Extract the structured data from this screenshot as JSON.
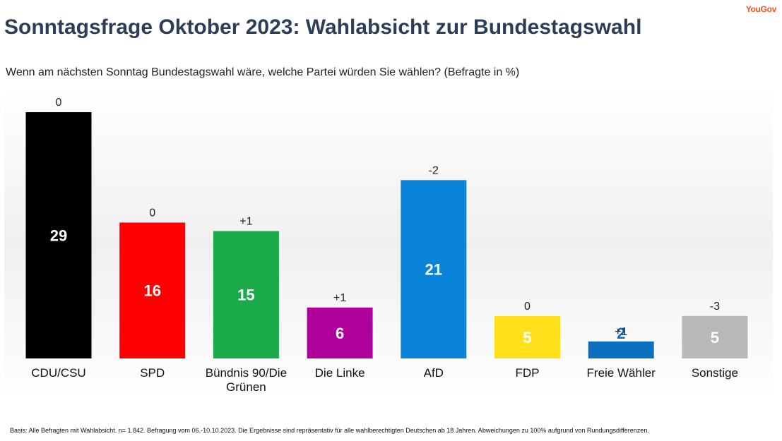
{
  "brand": {
    "logo_text": "YouGov"
  },
  "header": {
    "title": "Sonntagsfrage Oktober 2023: Wahlabsicht zur Bundestagswahl",
    "subtitle": "Wenn am nächsten Sonntag Bundestagswahl wäre, welche Partei würden Sie wählen? (Befragte in %)"
  },
  "footnote": "Basis: Alle Befragten mit Wahlabsicht. n= 1.842. Befragung vom 06.-10.10.2023. Die Ergebnisse sind repräsentativ für alle wahlberechtigten Deutschen ab 18 Jahren. Abweichungen zu 100% aufgrund von Rundungsdifferenzen.",
  "chart_data": {
    "type": "bar",
    "title": "Sonntagsfrage Oktober 2023: Wahlabsicht zur Bundestagswahl",
    "ylabel": "",
    "xlabel": "",
    "ylim": [
      0,
      29
    ],
    "grid": false,
    "categories": [
      "CDU/CSU",
      "SPD",
      "Bündnis 90/Die Grünen",
      "Die Linke",
      "AfD",
      "FDP",
      "Freie Wähler",
      "Sonstige"
    ],
    "category_label_lines": [
      [
        "CDU/CSU"
      ],
      [
        "SPD"
      ],
      [
        "Bündnis 90/Die",
        "Grünen"
      ],
      [
        "Die Linke"
      ],
      [
        "AfD"
      ],
      [
        "FDP"
      ],
      [
        "Freie Wähler"
      ],
      [
        "Sonstige"
      ]
    ],
    "values": [
      29,
      16,
      15,
      6,
      21,
      5,
      2,
      5
    ],
    "changes": [
      "0",
      "0",
      "+1",
      "+1",
      "-2",
      "0",
      "+1",
      "-3"
    ],
    "colors": [
      "#000000",
      "#ff0000",
      "#1aaa4a",
      "#b0009c",
      "#0a84d8",
      "#ffe01a",
      "#0c6fc0",
      "#b8b8b8"
    ],
    "value_label_colors": [
      "#ffffff",
      "#ffffff",
      "#ffffff",
      "#ffffff",
      "#ffffff",
      "#ffffff",
      "#0c6fc0",
      "#ffffff"
    ]
  }
}
